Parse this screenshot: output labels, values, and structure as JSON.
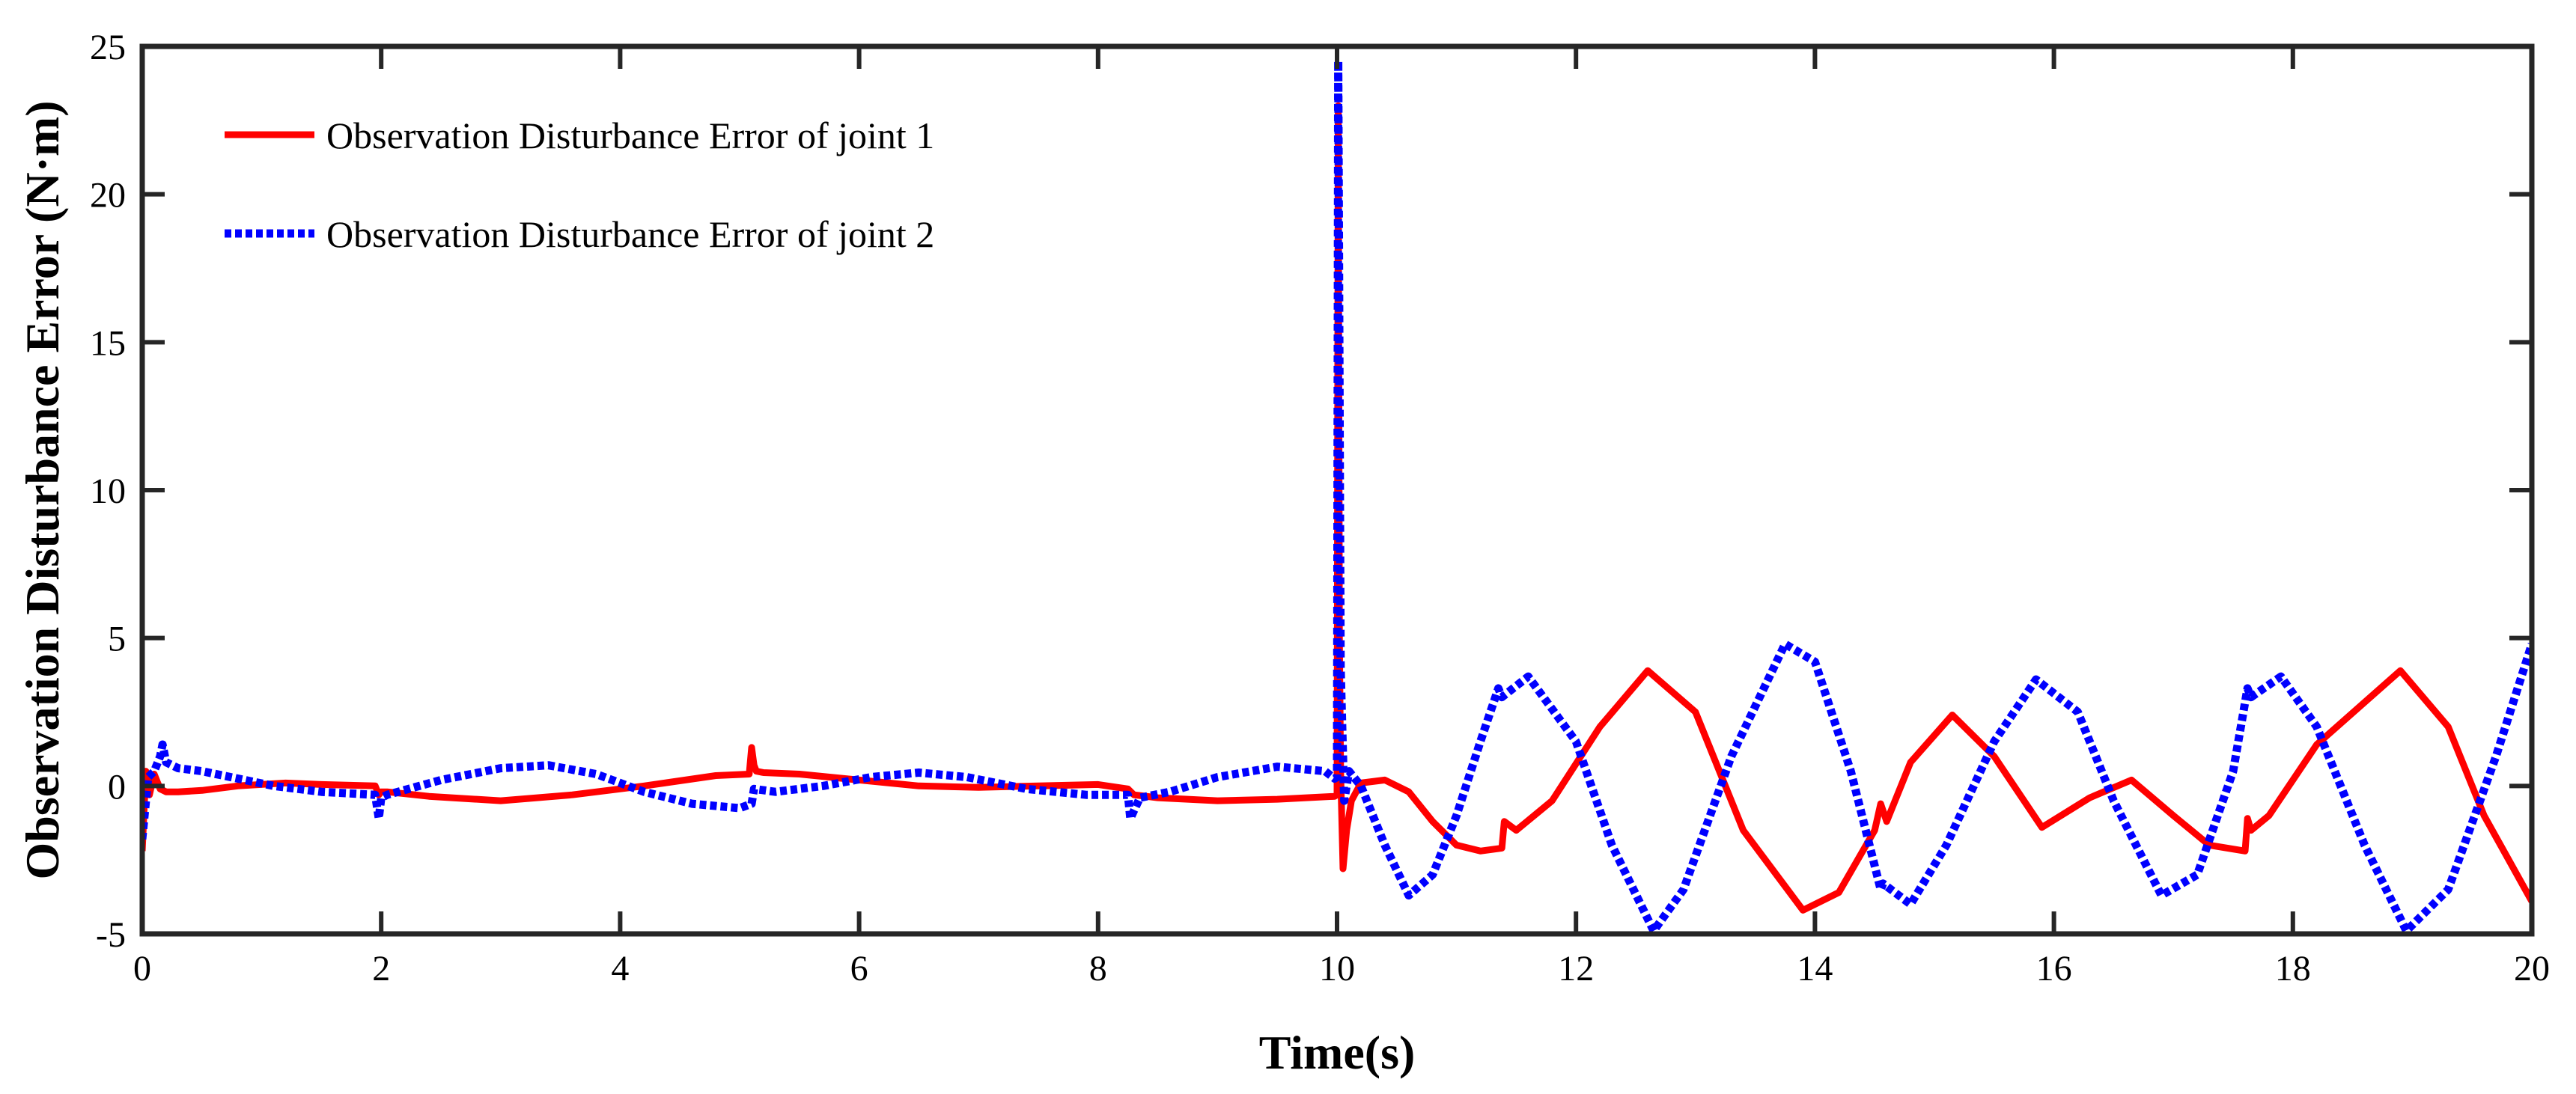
{
  "chart_data": {
    "type": "line",
    "title": "",
    "xlabel": "Time(s)",
    "ylabel": "Observation Disturbance Error (N·m)",
    "xlim": [
      0,
      20
    ],
    "ylim": [
      -5,
      25
    ],
    "xticks": [
      0,
      2,
      4,
      6,
      8,
      10,
      12,
      14,
      16,
      18,
      20
    ],
    "yticks": [
      -5,
      0,
      5,
      10,
      15,
      20,
      25
    ],
    "xtick_labels": [
      "0",
      "2",
      "4",
      "6",
      "8",
      "10",
      "12",
      "14",
      "16",
      "18",
      "20"
    ],
    "ytick_labels": [
      "-5",
      "0",
      "5",
      "10",
      "15",
      "20",
      "25"
    ],
    "grid": false,
    "legend_position": "top-left",
    "series": [
      {
        "name": "Observation Disturbance Error of joint 1",
        "color": "#ff0000",
        "style": "solid",
        "x": [
          0,
          0.03,
          0.06,
          0.1,
          0.15,
          0.2,
          0.3,
          0.5,
          0.8,
          1.2,
          1.5,
          1.95,
          1.98,
          2.0,
          2.05,
          2.4,
          3.0,
          3.6,
          4.2,
          4.8,
          5.08,
          5.1,
          5.12,
          5.14,
          5.2,
          5.5,
          6.0,
          6.5,
          7.0,
          7.5,
          8.0,
          8.25,
          8.3,
          8.5,
          9.0,
          9.5,
          9.98,
          10.0,
          10.01,
          10.02,
          10.03,
          10.05,
          10.08,
          10.12,
          10.2,
          10.4,
          10.6,
          10.8,
          11.0,
          11.2,
          11.38,
          11.4,
          11.5,
          11.8,
          12.2,
          12.6,
          13.0,
          13.4,
          13.9,
          14.2,
          14.5,
          14.55,
          14.6,
          14.8,
          15.15,
          15.5,
          15.9,
          16.3,
          16.65,
          17.0,
          17.3,
          17.6,
          17.62,
          17.65,
          17.8,
          18.2,
          18.9,
          19.3,
          19.6,
          20.0
        ],
        "y": [
          -2.2,
          0.5,
          -0.3,
          0.4,
          -0.1,
          -0.2,
          -0.2,
          -0.15,
          0.0,
          0.1,
          0.05,
          0.0,
          -0.3,
          -0.2,
          -0.2,
          -0.35,
          -0.5,
          -0.3,
          0.0,
          0.35,
          0.4,
          1.3,
          0.7,
          0.5,
          0.45,
          0.4,
          0.2,
          0.0,
          -0.05,
          0.0,
          0.05,
          -0.1,
          -0.3,
          -0.4,
          -0.5,
          -0.45,
          -0.35,
          -0.3,
          23.0,
          5.0,
          0.5,
          -2.8,
          -1.5,
          -0.5,
          0.1,
          0.2,
          -0.2,
          -1.2,
          -2.0,
          -2.2,
          -2.1,
          -1.2,
          -1.5,
          -0.5,
          2.0,
          3.9,
          2.5,
          -1.5,
          -4.2,
          -3.6,
          -1.5,
          -0.6,
          -1.2,
          0.8,
          2.4,
          1.0,
          -1.4,
          -0.4,
          0.2,
          -1.0,
          -2.0,
          -2.2,
          -1.1,
          -1.5,
          -1.0,
          1.4,
          3.9,
          2.0,
          -1.0,
          -3.9
        ]
      },
      {
        "name": "Observation Disturbance Error of joint 2",
        "color": "#0000ff",
        "style": "dotted",
        "x": [
          0,
          0.05,
          0.1,
          0.15,
          0.17,
          0.2,
          0.3,
          0.5,
          0.8,
          1.1,
          1.5,
          1.95,
          1.98,
          2.0,
          2.05,
          2.5,
          3.0,
          3.4,
          3.8,
          4.2,
          4.6,
          5.0,
          5.1,
          5.12,
          5.3,
          5.7,
          6.1,
          6.5,
          6.9,
          7.4,
          7.9,
          8.25,
          8.27,
          8.35,
          8.6,
          9.0,
          9.5,
          9.9,
          9.98,
          10.0,
          10.01,
          10.03,
          10.06,
          10.1,
          10.2,
          10.4,
          10.6,
          10.8,
          11.0,
          11.2,
          11.35,
          11.38,
          11.6,
          12.0,
          12.3,
          12.65,
          12.9,
          13.3,
          13.75,
          14.0,
          14.3,
          14.55,
          14.57,
          14.8,
          15.1,
          15.5,
          15.85,
          16.2,
          16.5,
          16.9,
          17.2,
          17.5,
          17.62,
          17.65,
          17.9,
          18.2,
          18.6,
          18.95,
          19.3,
          19.7,
          20.0
        ],
        "y": [
          -1.8,
          0.3,
          0.5,
          1.0,
          1.4,
          0.8,
          0.6,
          0.5,
          0.25,
          0.0,
          -0.2,
          -0.3,
          -1.1,
          -0.4,
          -0.3,
          0.2,
          0.6,
          0.7,
          0.4,
          -0.2,
          -0.6,
          -0.75,
          -0.6,
          -0.1,
          -0.2,
          0.0,
          0.3,
          0.45,
          0.3,
          -0.1,
          -0.3,
          -0.3,
          -1.1,
          -0.4,
          -0.2,
          0.3,
          0.65,
          0.5,
          0.25,
          0.3,
          24.5,
          4.0,
          -0.5,
          0.5,
          0.0,
          -2.0,
          -3.7,
          -3.0,
          -1.0,
          1.5,
          3.3,
          3.0,
          3.7,
          1.5,
          -2.0,
          -4.9,
          -3.5,
          1.0,
          4.8,
          4.2,
          0.5,
          -3.5,
          -3.3,
          -4.0,
          -2.0,
          1.5,
          3.6,
          2.5,
          -0.5,
          -3.7,
          -3.0,
          0.5,
          3.3,
          3.0,
          3.7,
          2.0,
          -2.0,
          -4.9,
          -3.5,
          1.0,
          4.8
        ]
      }
    ]
  }
}
